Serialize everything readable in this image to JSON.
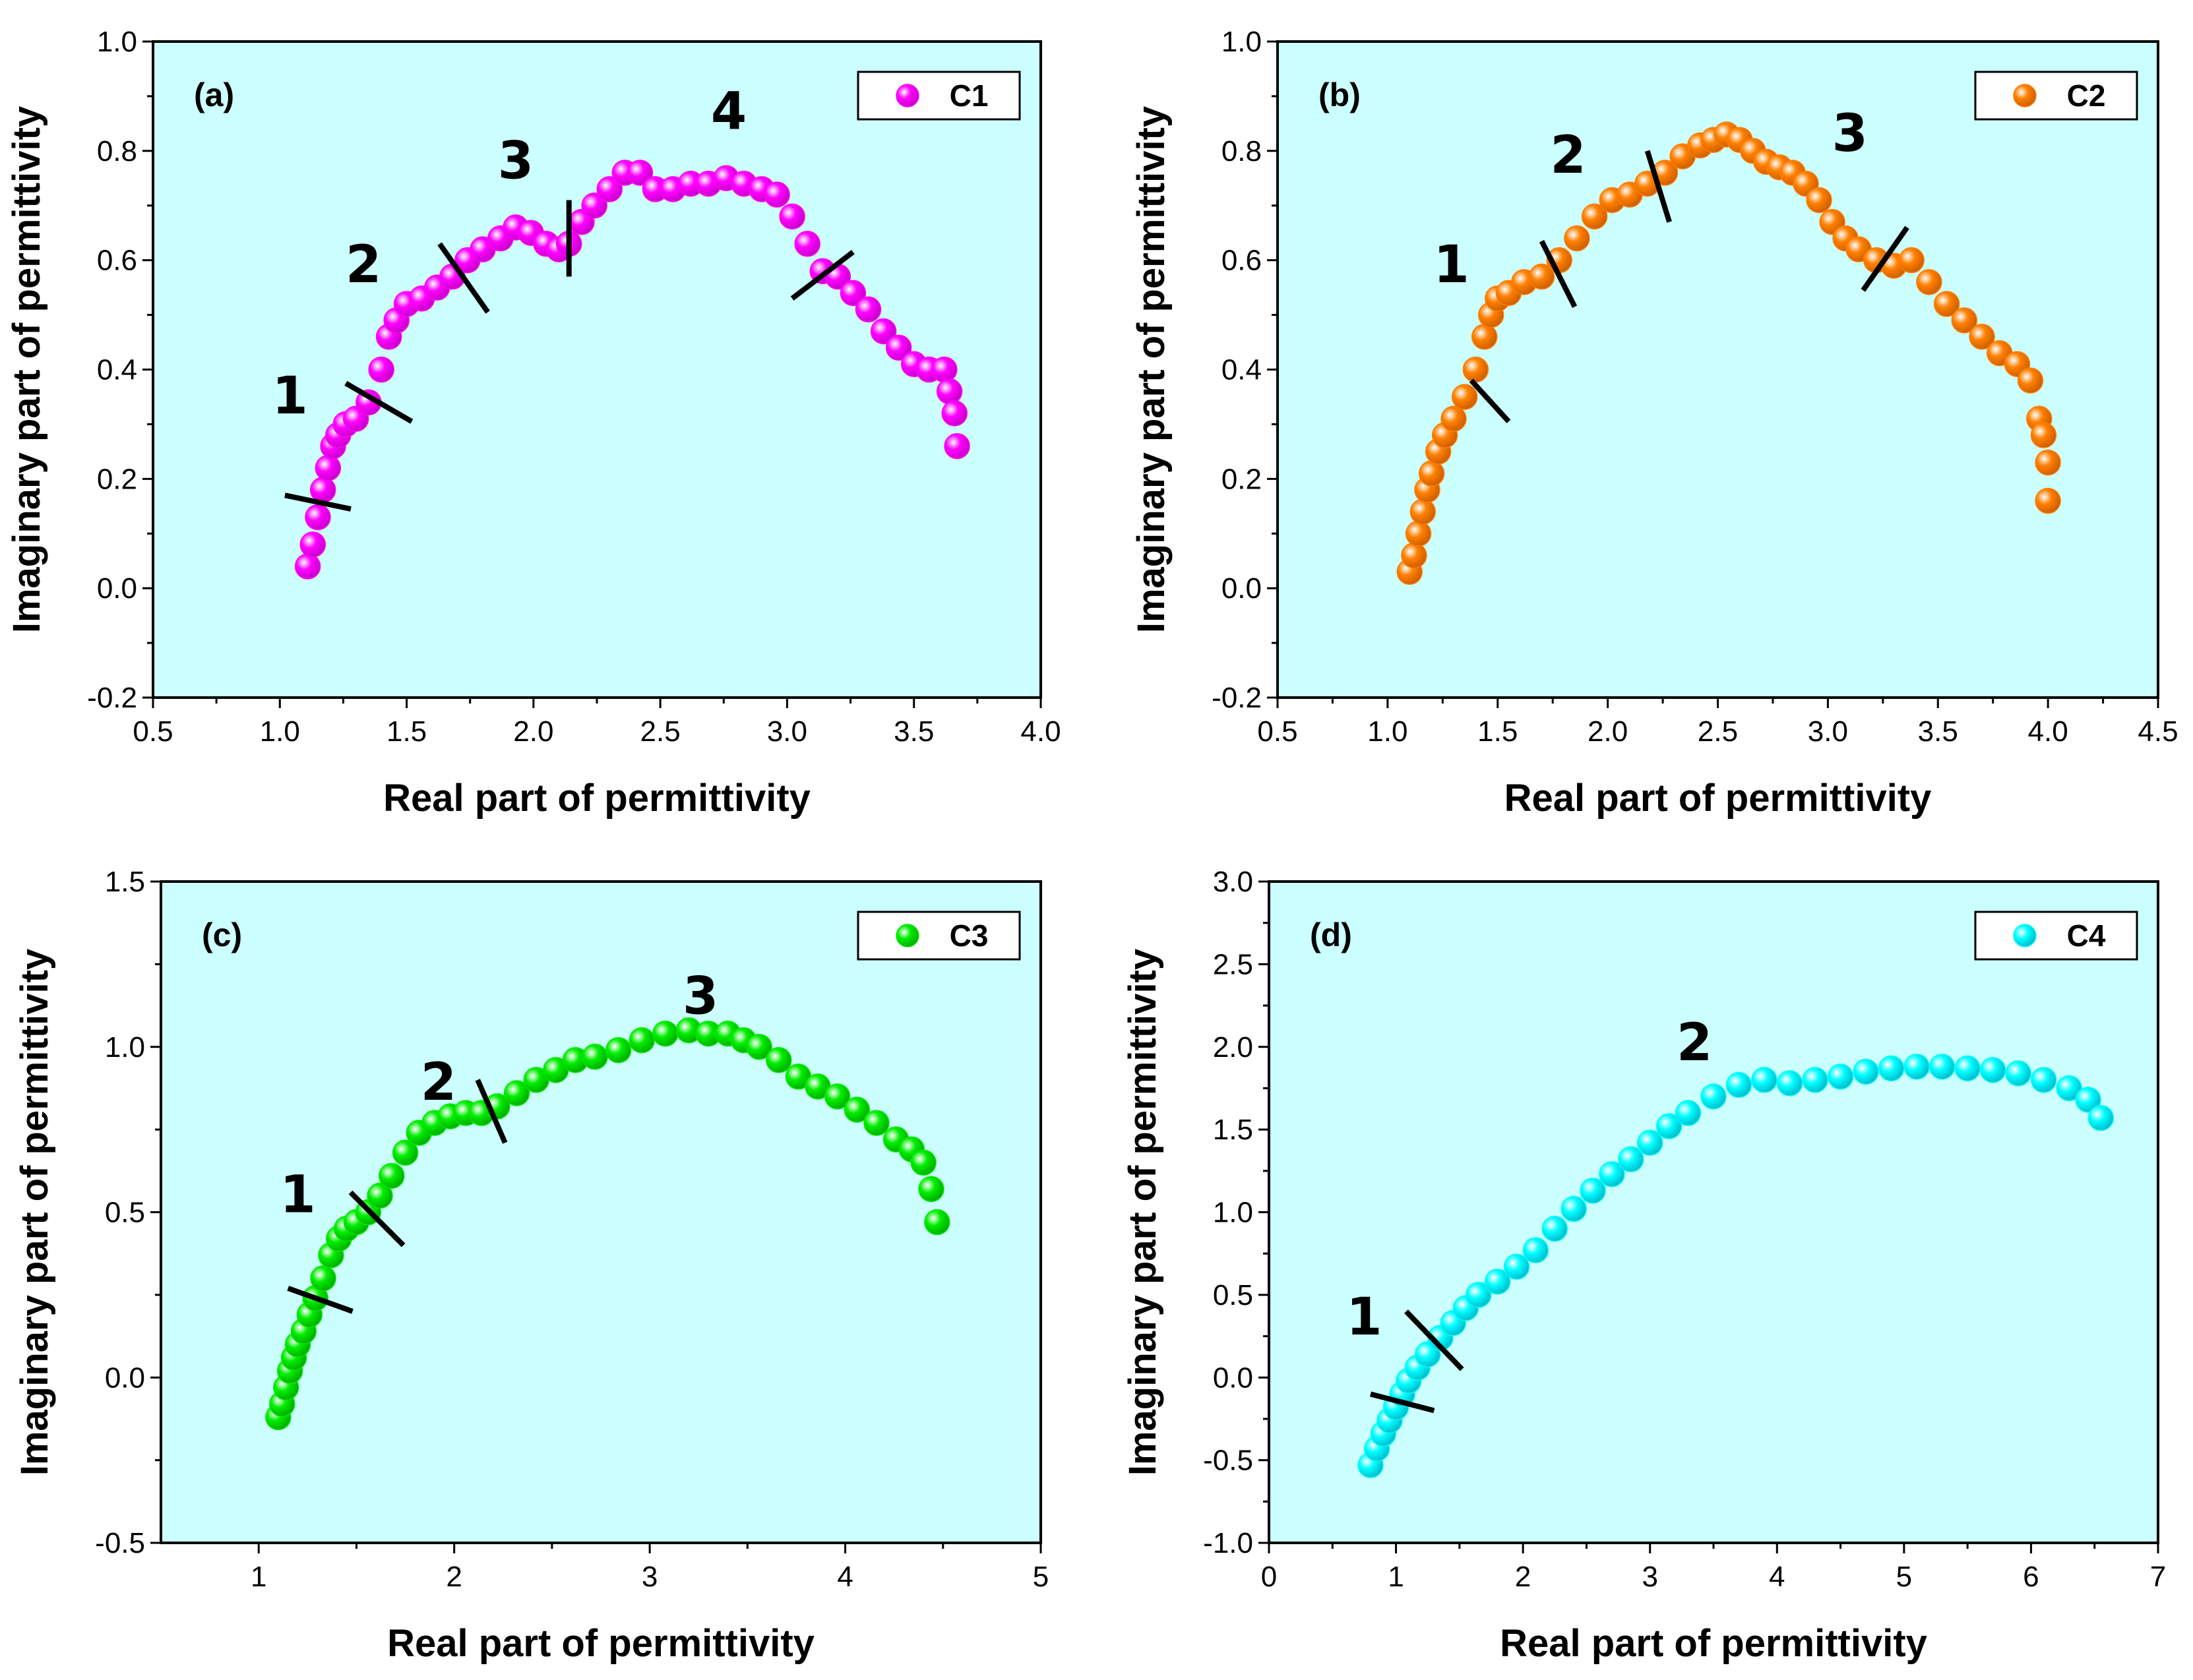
{
  "chart_data": [
    {
      "type": "scatter",
      "panel": "(a)",
      "xlabel": "Real part of permittivity",
      "ylabel": "Imaginary part of permittivity",
      "xlim": [
        0.5,
        4.0
      ],
      "ylim": [
        -0.2,
        1.0
      ],
      "xticks": [
        "0.5",
        "1.0",
        "1.5",
        "2.0",
        "2.5",
        "3.0",
        "3.5",
        "4.0"
      ],
      "yticks": [
        "-0.2",
        "0.0",
        "0.2",
        "0.4",
        "0.6",
        "0.8",
        "1.0"
      ],
      "legend_position": "top-right",
      "series": [
        {
          "name": "C1",
          "color": "#ff00ff",
          "x": [
            1.11,
            1.13,
            1.15,
            1.17,
            1.19,
            1.21,
            1.23,
            1.26,
            1.3,
            1.35,
            1.4,
            1.43,
            1.46,
            1.5,
            1.56,
            1.62,
            1.68,
            1.74,
            1.8,
            1.87,
            1.93,
            1.99,
            2.05,
            2.1,
            2.14,
            2.19,
            2.24,
            2.3,
            2.36,
            2.42,
            2.48,
            2.55,
            2.62,
            2.69,
            2.76,
            2.83,
            2.9,
            2.96,
            3.02,
            3.08,
            3.14,
            3.2,
            3.26,
            3.32,
            3.38,
            3.44,
            3.5,
            3.56,
            3.62,
            3.64,
            3.66,
            3.67
          ],
          "y": [
            0.04,
            0.08,
            0.13,
            0.18,
            0.22,
            0.26,
            0.28,
            0.3,
            0.31,
            0.34,
            0.4,
            0.46,
            0.49,
            0.52,
            0.53,
            0.55,
            0.57,
            0.6,
            0.62,
            0.64,
            0.66,
            0.65,
            0.63,
            0.62,
            0.63,
            0.67,
            0.7,
            0.73,
            0.76,
            0.76,
            0.73,
            0.73,
            0.74,
            0.74,
            0.75,
            0.74,
            0.73,
            0.72,
            0.68,
            0.63,
            0.58,
            0.57,
            0.54,
            0.51,
            0.47,
            0.44,
            0.41,
            0.4,
            0.4,
            0.36,
            0.32,
            0.26
          ]
        }
      ],
      "annotations": [
        {
          "text": "1",
          "x": 1.04,
          "y": 0.32
        },
        {
          "text": "2",
          "x": 1.33,
          "y": 0.56
        },
        {
          "text": "3",
          "x": 1.93,
          "y": 0.75
        },
        {
          "text": "4",
          "x": 2.77,
          "y": 0.84
        }
      ],
      "separators": [
        {
          "x1": 1.02,
          "y1": 0.17,
          "x2": 1.28,
          "y2": 0.145
        },
        {
          "x1": 1.26,
          "y1": 0.375,
          "x2": 1.52,
          "y2": 0.305
        },
        {
          "x1": 1.63,
          "y1": 0.63,
          "x2": 1.82,
          "y2": 0.505
        },
        {
          "x1": 2.14,
          "y1": 0.71,
          "x2": 2.14,
          "y2": 0.57
        },
        {
          "x1": 3.02,
          "y1": 0.53,
          "x2": 3.26,
          "y2": 0.615
        }
      ]
    },
    {
      "type": "scatter",
      "panel": "(b)",
      "xlabel": "Real part of permittivity",
      "ylabel": "Imaginary part of permittivity",
      "xlim": [
        0.5,
        4.5
      ],
      "ylim": [
        -0.2,
        1.0
      ],
      "xticks": [
        "0.5",
        "1.0",
        "1.5",
        "2.0",
        "2.5",
        "3.0",
        "3.5",
        "4.0",
        "4.5"
      ],
      "yticks": [
        "-0.2",
        "0.0",
        "0.2",
        "0.4",
        "0.6",
        "0.8",
        "1.0"
      ],
      "legend_position": "top-right",
      "series": [
        {
          "name": "C2",
          "color": "#ff8000",
          "x": [
            1.1,
            1.12,
            1.14,
            1.16,
            1.18,
            1.2,
            1.23,
            1.26,
            1.3,
            1.35,
            1.4,
            1.44,
            1.47,
            1.5,
            1.55,
            1.62,
            1.7,
            1.78,
            1.86,
            1.94,
            2.02,
            2.1,
            2.18,
            2.26,
            2.34,
            2.42,
            2.48,
            2.54,
            2.6,
            2.66,
            2.72,
            2.78,
            2.84,
            2.9,
            2.96,
            3.02,
            3.08,
            3.14,
            3.22,
            3.3,
            3.38,
            3.46,
            3.54,
            3.62,
            3.7,
            3.78,
            3.86,
            3.92,
            3.96,
            3.98,
            4.0,
            4.0
          ],
          "y": [
            0.03,
            0.06,
            0.1,
            0.14,
            0.18,
            0.21,
            0.25,
            0.28,
            0.31,
            0.35,
            0.4,
            0.46,
            0.5,
            0.53,
            0.54,
            0.56,
            0.57,
            0.6,
            0.64,
            0.68,
            0.71,
            0.72,
            0.74,
            0.76,
            0.79,
            0.81,
            0.82,
            0.83,
            0.82,
            0.8,
            0.78,
            0.77,
            0.76,
            0.74,
            0.71,
            0.67,
            0.64,
            0.62,
            0.6,
            0.59,
            0.6,
            0.56,
            0.52,
            0.49,
            0.46,
            0.43,
            0.41,
            0.38,
            0.31,
            0.28,
            0.23,
            0.16
          ]
        }
      ],
      "annotations": [
        {
          "text": "1",
          "x": 1.29,
          "y": 0.56
        },
        {
          "text": "2",
          "x": 1.82,
          "y": 0.76
        },
        {
          "text": "3",
          "x": 3.1,
          "y": 0.8
        }
      ],
      "separators": [
        {
          "x1": 1.38,
          "y1": 0.38,
          "x2": 1.55,
          "y2": 0.305
        },
        {
          "x1": 1.7,
          "y1": 0.635,
          "x2": 1.85,
          "y2": 0.515
        },
        {
          "x1": 2.18,
          "y1": 0.8,
          "x2": 2.28,
          "y2": 0.67
        },
        {
          "x1": 3.16,
          "y1": 0.545,
          "x2": 3.36,
          "y2": 0.66
        }
      ]
    },
    {
      "type": "scatter",
      "panel": "(c)",
      "xlabel": "Real part of permittivity",
      "ylabel": "Imaginary part of permittivity",
      "xlim": [
        0.5,
        5
      ],
      "ylim": [
        -0.5,
        1.5
      ],
      "xticks": [
        "1",
        "2",
        "3",
        "4",
        "5"
      ],
      "yticks": [
        "-0.5",
        "0.0",
        "0.5",
        "1.0",
        "1.5"
      ],
      "legend_position": "top-right",
      "series": [
        {
          "name": "C3",
          "color": "#00ee00",
          "x": [
            1.1,
            1.12,
            1.14,
            1.16,
            1.18,
            1.2,
            1.23,
            1.26,
            1.29,
            1.33,
            1.37,
            1.41,
            1.45,
            1.5,
            1.56,
            1.62,
            1.68,
            1.75,
            1.82,
            1.9,
            1.98,
            2.06,
            2.14,
            2.22,
            2.32,
            2.42,
            2.52,
            2.62,
            2.72,
            2.84,
            2.96,
            3.08,
            3.2,
            3.3,
            3.4,
            3.48,
            3.56,
            3.66,
            3.76,
            3.86,
            3.96,
            4.06,
            4.16,
            4.26,
            4.34,
            4.4,
            4.44,
            4.47
          ],
          "y": [
            -0.12,
            -0.08,
            -0.03,
            0.02,
            0.06,
            0.1,
            0.14,
            0.19,
            0.24,
            0.3,
            0.37,
            0.42,
            0.45,
            0.47,
            0.5,
            0.55,
            0.61,
            0.68,
            0.74,
            0.77,
            0.79,
            0.8,
            0.8,
            0.82,
            0.86,
            0.9,
            0.93,
            0.96,
            0.97,
            0.99,
            1.02,
            1.04,
            1.05,
            1.04,
            1.04,
            1.02,
            1.0,
            0.96,
            0.91,
            0.88,
            0.85,
            0.81,
            0.77,
            0.72,
            0.69,
            0.65,
            0.57,
            0.47
          ]
        }
      ],
      "annotations": [
        {
          "text": "1",
          "x": 1.2,
          "y": 0.5
        },
        {
          "text": "2",
          "x": 1.92,
          "y": 0.84
        },
        {
          "text": "3",
          "x": 3.26,
          "y": 1.1
        }
      ],
      "separators": [
        {
          "x1": 1.15,
          "y1": 0.27,
          "x2": 1.48,
          "y2": 0.2
        },
        {
          "x1": 1.47,
          "y1": 0.56,
          "x2": 1.74,
          "y2": 0.4
        },
        {
          "x1": 2.12,
          "y1": 0.9,
          "x2": 2.26,
          "y2": 0.71
        }
      ]
    },
    {
      "type": "scatter",
      "panel": "(d)",
      "xlabel": "Real part of permittivity",
      "ylabel": "Imaginary part of permittivity",
      "xlim": [
        0,
        7
      ],
      "ylim": [
        -1.0,
        3.0
      ],
      "xticks": [
        "0",
        "1",
        "2",
        "3",
        "4",
        "5",
        "6",
        "7"
      ],
      "yticks": [
        "-1.0",
        "-0.5",
        "0.0",
        "0.5",
        "1.0",
        "1.5",
        "2.0",
        "2.5",
        "3.0"
      ],
      "legend_position": "top-right",
      "series": [
        {
          "name": "C4",
          "color": "#00ffff",
          "x": [
            0.8,
            0.85,
            0.9,
            0.95,
            1.0,
            1.05,
            1.1,
            1.17,
            1.25,
            1.35,
            1.45,
            1.55,
            1.65,
            1.8,
            1.95,
            2.1,
            2.25,
            2.4,
            2.55,
            2.7,
            2.85,
            3.0,
            3.15,
            3.3,
            3.5,
            3.7,
            3.9,
            4.1,
            4.3,
            4.5,
            4.7,
            4.9,
            5.1,
            5.3,
            5.5,
            5.7,
            5.9,
            6.1,
            6.3,
            6.45,
            6.55
          ],
          "y": [
            -0.53,
            -0.43,
            -0.34,
            -0.26,
            -0.18,
            -0.1,
            -0.02,
            0.06,
            0.14,
            0.24,
            0.33,
            0.42,
            0.5,
            0.58,
            0.67,
            0.77,
            0.9,
            1.02,
            1.13,
            1.23,
            1.32,
            1.42,
            1.52,
            1.6,
            1.7,
            1.77,
            1.8,
            1.78,
            1.8,
            1.82,
            1.85,
            1.87,
            1.88,
            1.88,
            1.87,
            1.86,
            1.84,
            1.8,
            1.75,
            1.68,
            1.57
          ]
        }
      ],
      "annotations": [
        {
          "text": "1",
          "x": 0.75,
          "y": 0.26
        },
        {
          "text": "2",
          "x": 3.35,
          "y": 1.92
        }
      ],
      "separators": [
        {
          "x1": 0.8,
          "y1": -0.1,
          "x2": 1.3,
          "y2": -0.2
        },
        {
          "x1": 1.08,
          "y1": 0.4,
          "x2": 1.52,
          "y2": 0.05
        }
      ]
    }
  ]
}
